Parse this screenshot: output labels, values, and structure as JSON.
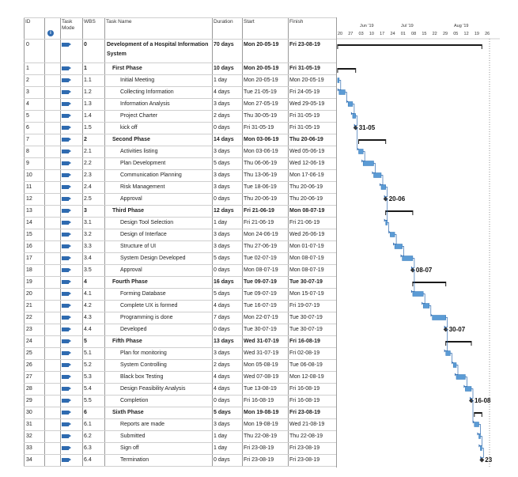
{
  "columns": {
    "id": "ID",
    "info": "i",
    "mode": "Task Mode",
    "wbs": "WBS",
    "name": "Task Name",
    "duration": "Duration",
    "start": "Start",
    "finish": "Finish"
  },
  "timescale": {
    "top": [
      "Jun '19",
      "Jul '19",
      "Aug '19"
    ],
    "bottom": [
      "20",
      "27",
      "03",
      "10",
      "17",
      "24",
      "01",
      "08",
      "15",
      "22",
      "29",
      "05",
      "12",
      "19",
      "26"
    ]
  },
  "tasks": [
    {
      "id": "0",
      "wbs": "0",
      "name": "Development of a Hospital Information System",
      "duration": "70 days",
      "start": "Mon 20-05-19",
      "finish": "Fri 23-08-19",
      "level": 0,
      "summary": true
    },
    {
      "id": "1",
      "wbs": "1",
      "name": "First Phase",
      "duration": "10 days",
      "start": "Mon 20-05-19",
      "finish": "Fri 31-05-19",
      "level": 1,
      "summary": true
    },
    {
      "id": "2",
      "wbs": "1.1",
      "name": "Initial Meeting",
      "duration": "1 day",
      "start": "Mon 20-05-19",
      "finish": "Mon 20-05-19",
      "level": 2,
      "summary": false
    },
    {
      "id": "3",
      "wbs": "1.2",
      "name": "Collecting Information",
      "duration": "4 days",
      "start": "Tue 21-05-19",
      "finish": "Fri 24-05-19",
      "level": 2,
      "summary": false
    },
    {
      "id": "4",
      "wbs": "1.3",
      "name": "Information Analysis",
      "duration": "3 days",
      "start": "Mon 27-05-19",
      "finish": "Wed 29-05-19",
      "level": 2,
      "summary": false
    },
    {
      "id": "5",
      "wbs": "1.4",
      "name": "Project Charter",
      "duration": "2 days",
      "start": "Thu 30-05-19",
      "finish": "Fri 31-05-19",
      "level": 2,
      "summary": false
    },
    {
      "id": "6",
      "wbs": "1.5",
      "name": "kick off",
      "duration": "0 days",
      "start": "Fri 31-05-19",
      "finish": "Fri 31-05-19",
      "level": 2,
      "summary": false,
      "milestone": "31-05"
    },
    {
      "id": "7",
      "wbs": "2",
      "name": "Second Phase",
      "duration": "14 days",
      "start": "Mon 03-06-19",
      "finish": "Thu 20-06-19",
      "level": 1,
      "summary": true
    },
    {
      "id": "8",
      "wbs": "2.1",
      "name": "Activities listing",
      "duration": "3 days",
      "start": "Mon 03-06-19",
      "finish": "Wed 05-06-19",
      "level": 2,
      "summary": false
    },
    {
      "id": "9",
      "wbs": "2.2",
      "name": "Plan Development",
      "duration": "5 days",
      "start": "Thu 06-06-19",
      "finish": "Wed 12-06-19",
      "level": 2,
      "summary": false
    },
    {
      "id": "10",
      "wbs": "2.3",
      "name": "Communication Planning",
      "duration": "3 days",
      "start": "Thu 13-06-19",
      "finish": "Mon 17-06-19",
      "level": 2,
      "summary": false
    },
    {
      "id": "11",
      "wbs": "2.4",
      "name": "Risk Management",
      "duration": "3 days",
      "start": "Tue 18-06-19",
      "finish": "Thu 20-06-19",
      "level": 2,
      "summary": false
    },
    {
      "id": "12",
      "wbs": "2.5",
      "name": "Approval",
      "duration": "0 days",
      "start": "Thu 20-06-19",
      "finish": "Thu 20-06-19",
      "level": 2,
      "summary": false,
      "milestone": "20-06"
    },
    {
      "id": "13",
      "wbs": "3",
      "name": "Third Phase",
      "duration": "12 days",
      "start": "Fri 21-06-19",
      "finish": "Mon 08-07-19",
      "level": 1,
      "summary": true
    },
    {
      "id": "14",
      "wbs": "3.1",
      "name": "Design Tool Selection",
      "duration": "1 day",
      "start": "Fri 21-06-19",
      "finish": "Fri 21-06-19",
      "level": 2,
      "summary": false
    },
    {
      "id": "15",
      "wbs": "3.2",
      "name": "Design of Interface",
      "duration": "3 days",
      "start": "Mon 24-06-19",
      "finish": "Wed 26-06-19",
      "level": 2,
      "summary": false
    },
    {
      "id": "16",
      "wbs": "3.3",
      "name": "Structure of UI",
      "duration": "3 days",
      "start": "Thu 27-06-19",
      "finish": "Mon 01-07-19",
      "level": 2,
      "summary": false
    },
    {
      "id": "17",
      "wbs": "3.4",
      "name": "System Design Developed",
      "duration": "5 days",
      "start": "Tue 02-07-19",
      "finish": "Mon 08-07-19",
      "level": 2,
      "summary": false
    },
    {
      "id": "18",
      "wbs": "3.5",
      "name": "Approval",
      "duration": "0 days",
      "start": "Mon 08-07-19",
      "finish": "Mon 08-07-19",
      "level": 2,
      "summary": false,
      "milestone": "08-07"
    },
    {
      "id": "19",
      "wbs": "4",
      "name": "Fourth Phase",
      "duration": "16 days",
      "start": "Tue 09-07-19",
      "finish": "Tue 30-07-19",
      "level": 1,
      "summary": true
    },
    {
      "id": "20",
      "wbs": "4.1",
      "name": "Forming Database",
      "duration": "5 days",
      "start": "Tue 09-07-19",
      "finish": "Mon 15-07-19",
      "level": 2,
      "summary": false
    },
    {
      "id": "21",
      "wbs": "4.2",
      "name": "Complete UX is formed",
      "duration": "4 days",
      "start": "Tue 16-07-19",
      "finish": "Fri 19-07-19",
      "level": 2,
      "summary": false
    },
    {
      "id": "22",
      "wbs": "4.3",
      "name": "Programming is done",
      "duration": "7 days",
      "start": "Mon 22-07-19",
      "finish": "Tue 30-07-19",
      "level": 2,
      "summary": false
    },
    {
      "id": "23",
      "wbs": "4.4",
      "name": "Developed",
      "duration": "0 days",
      "start": "Tue 30-07-19",
      "finish": "Tue 30-07-19",
      "level": 2,
      "summary": false,
      "milestone": "30-07"
    },
    {
      "id": "24",
      "wbs": "5",
      "name": "Fifth Phase",
      "duration": "13 days",
      "start": "Wed 31-07-19",
      "finish": "Fri 16-08-19",
      "level": 1,
      "summary": true
    },
    {
      "id": "25",
      "wbs": "5.1",
      "name": "Plan for monitoring",
      "duration": "3 days",
      "start": "Wed 31-07-19",
      "finish": "Fri 02-08-19",
      "level": 2,
      "summary": false
    },
    {
      "id": "26",
      "wbs": "5.2",
      "name": "System Controlling",
      "duration": "2 days",
      "start": "Mon 05-08-19",
      "finish": "Tue 06-08-19",
      "level": 2,
      "summary": false
    },
    {
      "id": "27",
      "wbs": "5.3",
      "name": "Black box Testing",
      "duration": "4 days",
      "start": "Wed 07-08-19",
      "finish": "Mon 12-08-19",
      "level": 2,
      "summary": false
    },
    {
      "id": "28",
      "wbs": "5.4",
      "name": "Design Feasibility Analysis",
      "duration": "4 days",
      "start": "Tue 13-08-19",
      "finish": "Fri 16-08-19",
      "level": 2,
      "summary": false
    },
    {
      "id": "29",
      "wbs": "5.5",
      "name": "Completion",
      "duration": "0 days",
      "start": "Fri 16-08-19",
      "finish": "Fri 16-08-19",
      "level": 2,
      "summary": false,
      "milestone": "16-08"
    },
    {
      "id": "30",
      "wbs": "6",
      "name": "Sixth Phase",
      "duration": "5 days",
      "start": "Mon 19-08-19",
      "finish": "Fri 23-08-19",
      "level": 1,
      "summary": true
    },
    {
      "id": "31",
      "wbs": "6.1",
      "name": "Reports are made",
      "duration": "3 days",
      "start": "Mon 19-08-19",
      "finish": "Wed 21-08-19",
      "level": 2,
      "summary": false
    },
    {
      "id": "32",
      "wbs": "6.2",
      "name": "Submitted",
      "duration": "1 day",
      "start": "Thu 22-08-19",
      "finish": "Thu 22-08-19",
      "level": 2,
      "summary": false
    },
    {
      "id": "33",
      "wbs": "6.3",
      "name": "Sign off",
      "duration": "1 day",
      "start": "Fri 23-08-19",
      "finish": "Fri 23-08-19",
      "level": 2,
      "summary": false
    },
    {
      "id": "34",
      "wbs": "6.4",
      "name": "Termination",
      "duration": "0 days",
      "start": "Fri 23-08-19",
      "finish": "Fri 23-08-19",
      "level": 2,
      "summary": false,
      "milestone": "23"
    }
  ],
  "colors": {
    "task_bar": "#5b9bd5",
    "task_bar_edge": "#2e75b6",
    "summary_bar": "#1a1a1a",
    "milestone": "#333333",
    "link": "#2f6bb0",
    "mode_icon": "#2f6bb0"
  }
}
